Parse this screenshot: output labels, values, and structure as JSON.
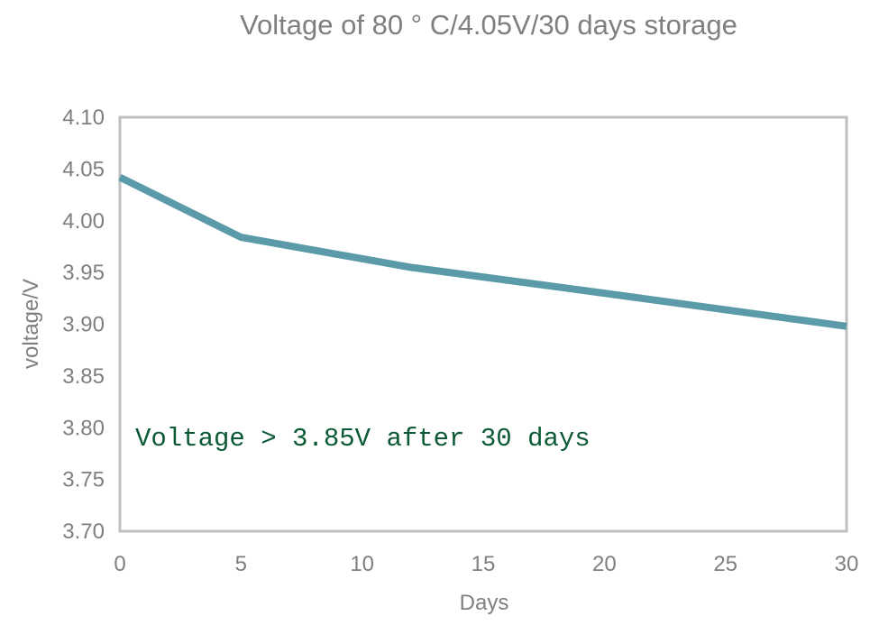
{
  "chart_data": {
    "type": "line",
    "title": "Voltage  of  80 ° C/4.05V/30 days storage",
    "xlabel": "Days",
    "ylabel": "voltage/V",
    "xlim": [
      0,
      30
    ],
    "ylim": [
      3.7,
      4.1
    ],
    "x_ticks": [
      "0",
      "5",
      "10",
      "15",
      "20",
      "25",
      "30"
    ],
    "y_ticks": [
      "3.70",
      "3.75",
      "3.80",
      "3.85",
      "3.90",
      "3.95",
      "4.00",
      "4.05",
      "4.10"
    ],
    "grid": false,
    "legend": "none",
    "series": [
      {
        "x": [
          0,
          5,
          12,
          20,
          30
        ],
        "values": [
          4.042,
          3.984,
          3.955,
          3.93,
          3.898
        ]
      }
    ],
    "annotation": "Voltage > 3.85V after 30 days",
    "colors": {
      "line": "#5b9aa8",
      "axis_frame": "#bfbfbf",
      "text": "#7f7f7f",
      "annotation": "#0b5a35"
    }
  }
}
